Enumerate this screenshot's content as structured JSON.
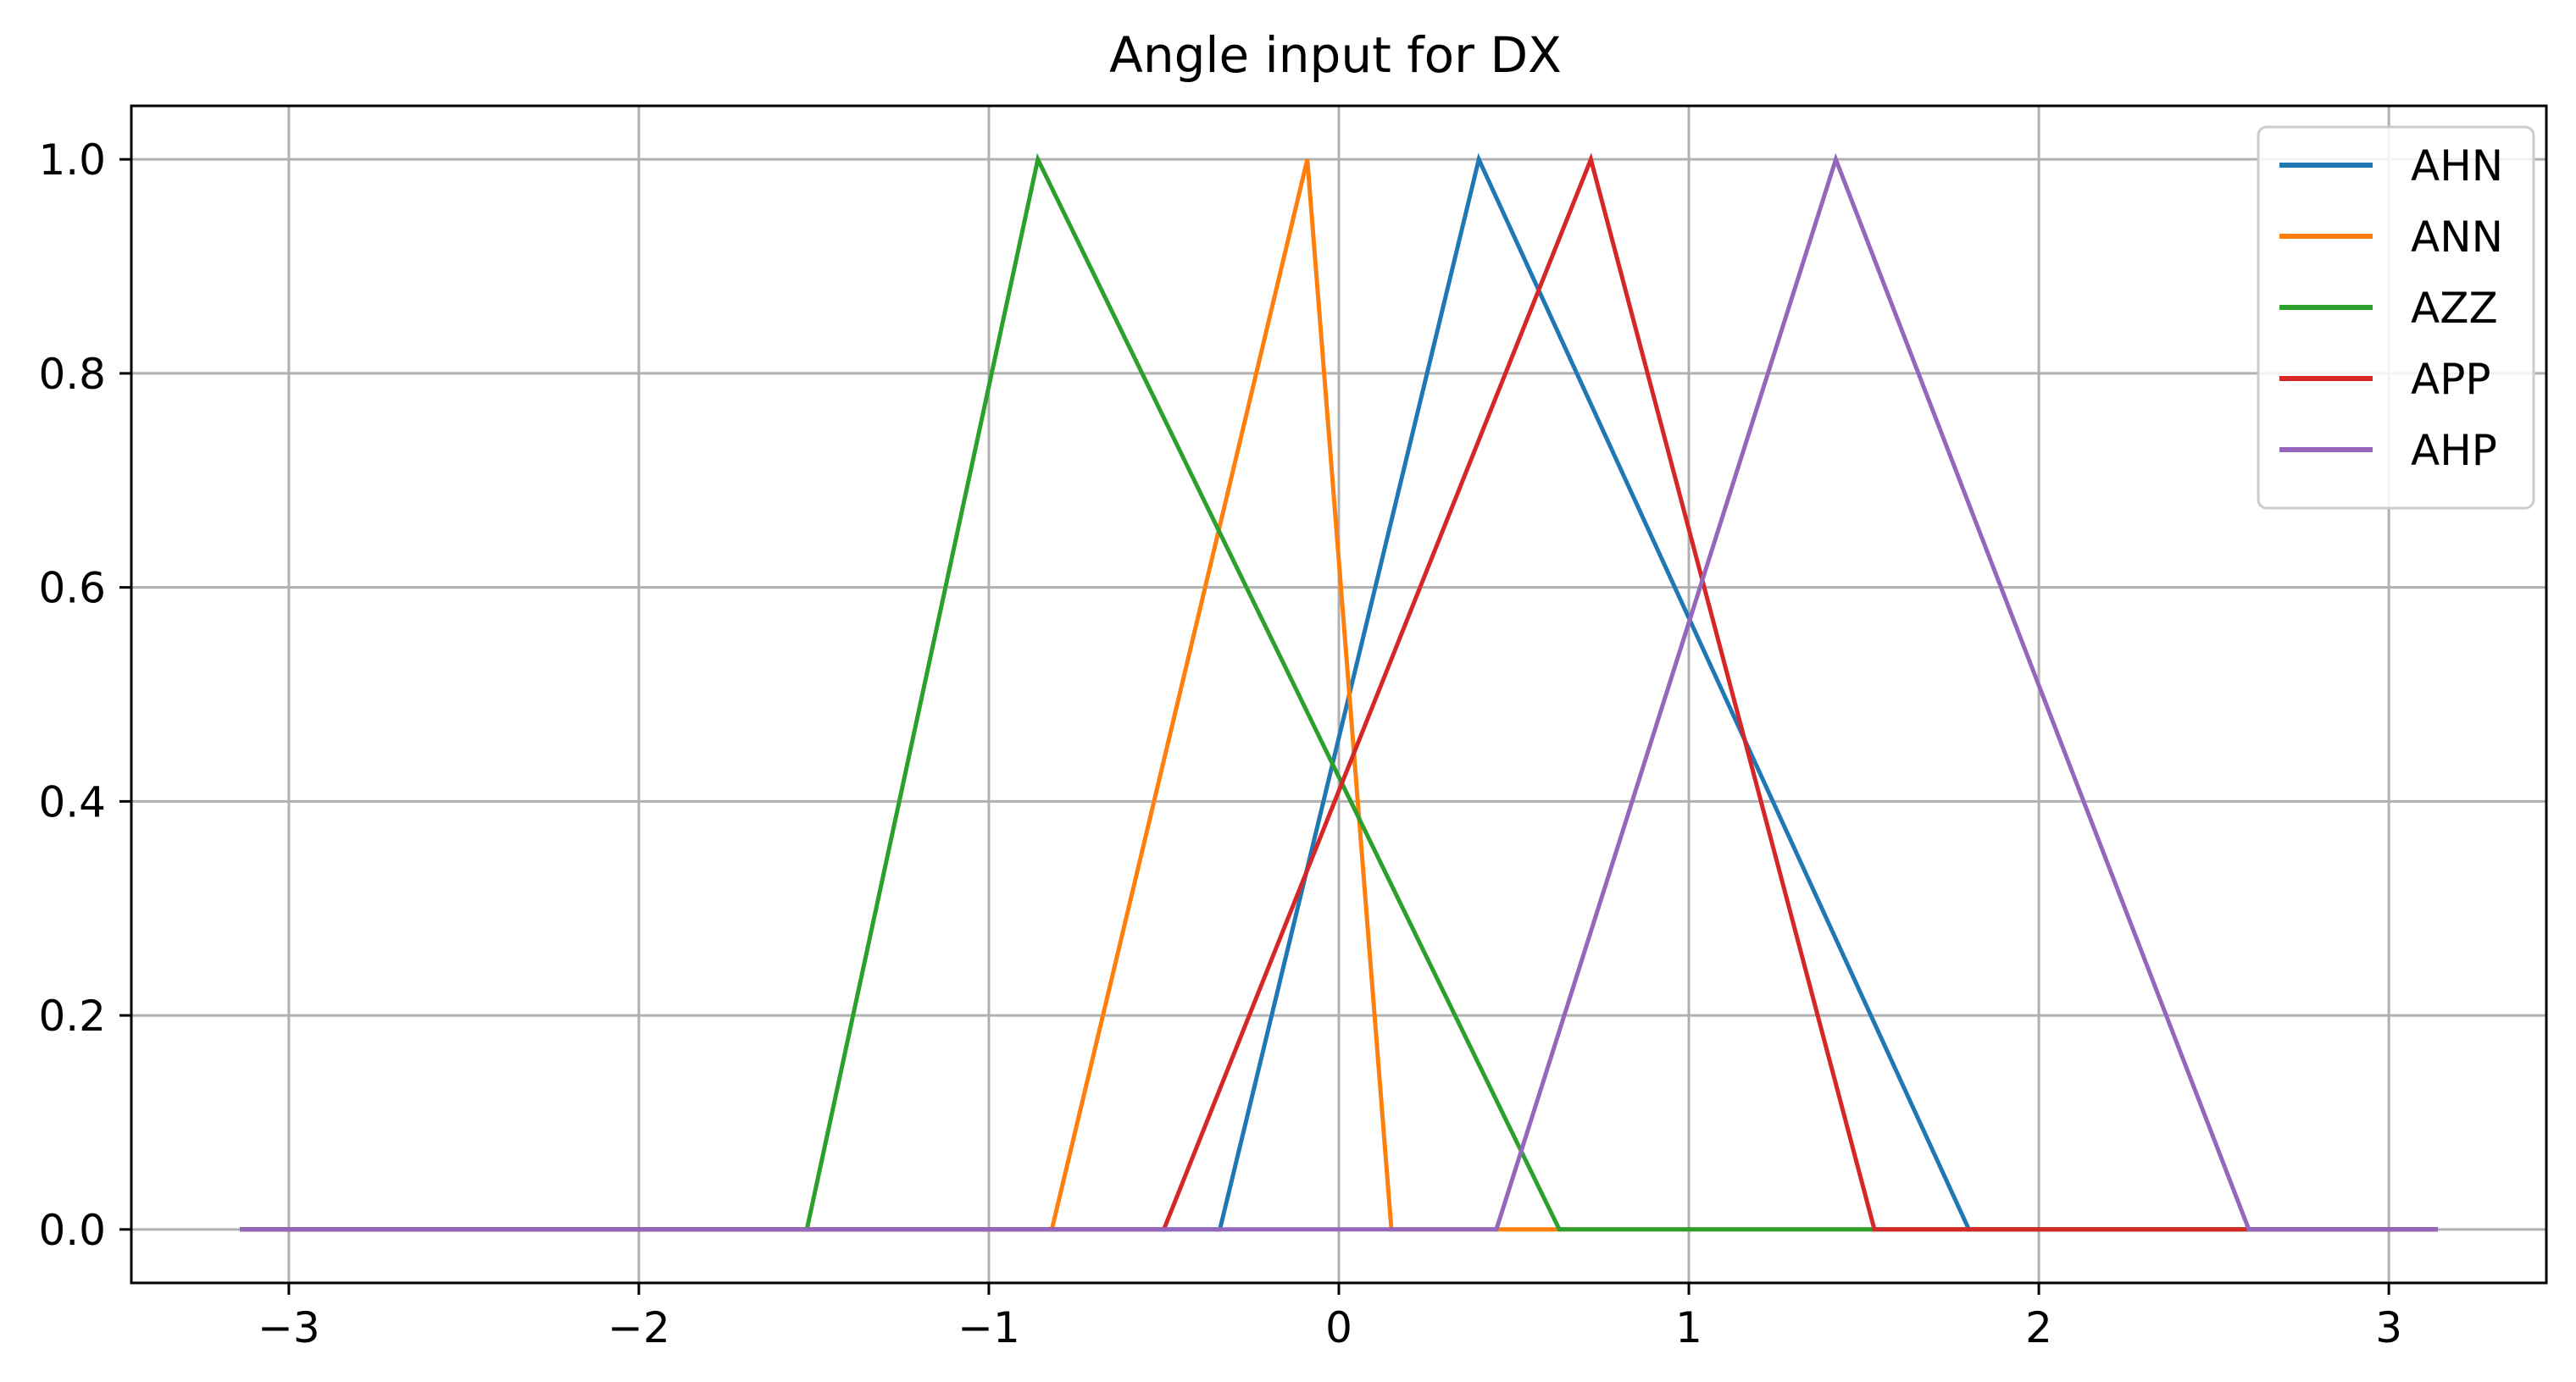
{
  "chart_data": {
    "type": "line",
    "title": "Angle input for DX",
    "xlabel": "",
    "ylabel": "",
    "xlim": [
      -3.45,
      3.45
    ],
    "ylim": [
      -0.05,
      1.05
    ],
    "xticks": [
      -3,
      -2,
      -1,
      0,
      1,
      2,
      3
    ],
    "xtick_labels": [
      "−3",
      "−2",
      "−1",
      "0",
      "1",
      "2",
      "3"
    ],
    "yticks": [
      0.0,
      0.2,
      0.4,
      0.6,
      0.8,
      1.0
    ],
    "ytick_labels": [
      "0.0",
      "0.2",
      "0.4",
      "0.6",
      "0.8",
      "1.0"
    ],
    "grid": true,
    "legend_position": "top-right",
    "series": [
      {
        "name": "AHN",
        "color": "#1f77b4",
        "x": [
          -3.14,
          -0.34,
          0.4,
          1.8,
          3.14
        ],
        "y": [
          0,
          0,
          1,
          0,
          0
        ]
      },
      {
        "name": "ANN",
        "color": "#ff7f0e",
        "x": [
          -3.14,
          -0.82,
          -0.09,
          0.15,
          0.63,
          3.14
        ],
        "y": [
          0,
          0,
          1,
          0,
          0,
          0
        ]
      },
      {
        "name": "AZZ",
        "color": "#2ca02c",
        "x": [
          -3.14,
          -1.52,
          -0.86,
          0.63,
          3.14
        ],
        "y": [
          0,
          0,
          1,
          0,
          0
        ]
      },
      {
        "name": "APP",
        "color": "#d62728",
        "x": [
          -3.14,
          -0.5,
          0.72,
          1.53,
          3.14
        ],
        "y": [
          0,
          0,
          1,
          0,
          0
        ]
      },
      {
        "name": "AHP",
        "color": "#9467bd",
        "x": [
          -3.14,
          0.45,
          1.42,
          2.6,
          3.14
        ],
        "y": [
          0,
          0,
          1,
          0,
          0
        ]
      }
    ]
  }
}
